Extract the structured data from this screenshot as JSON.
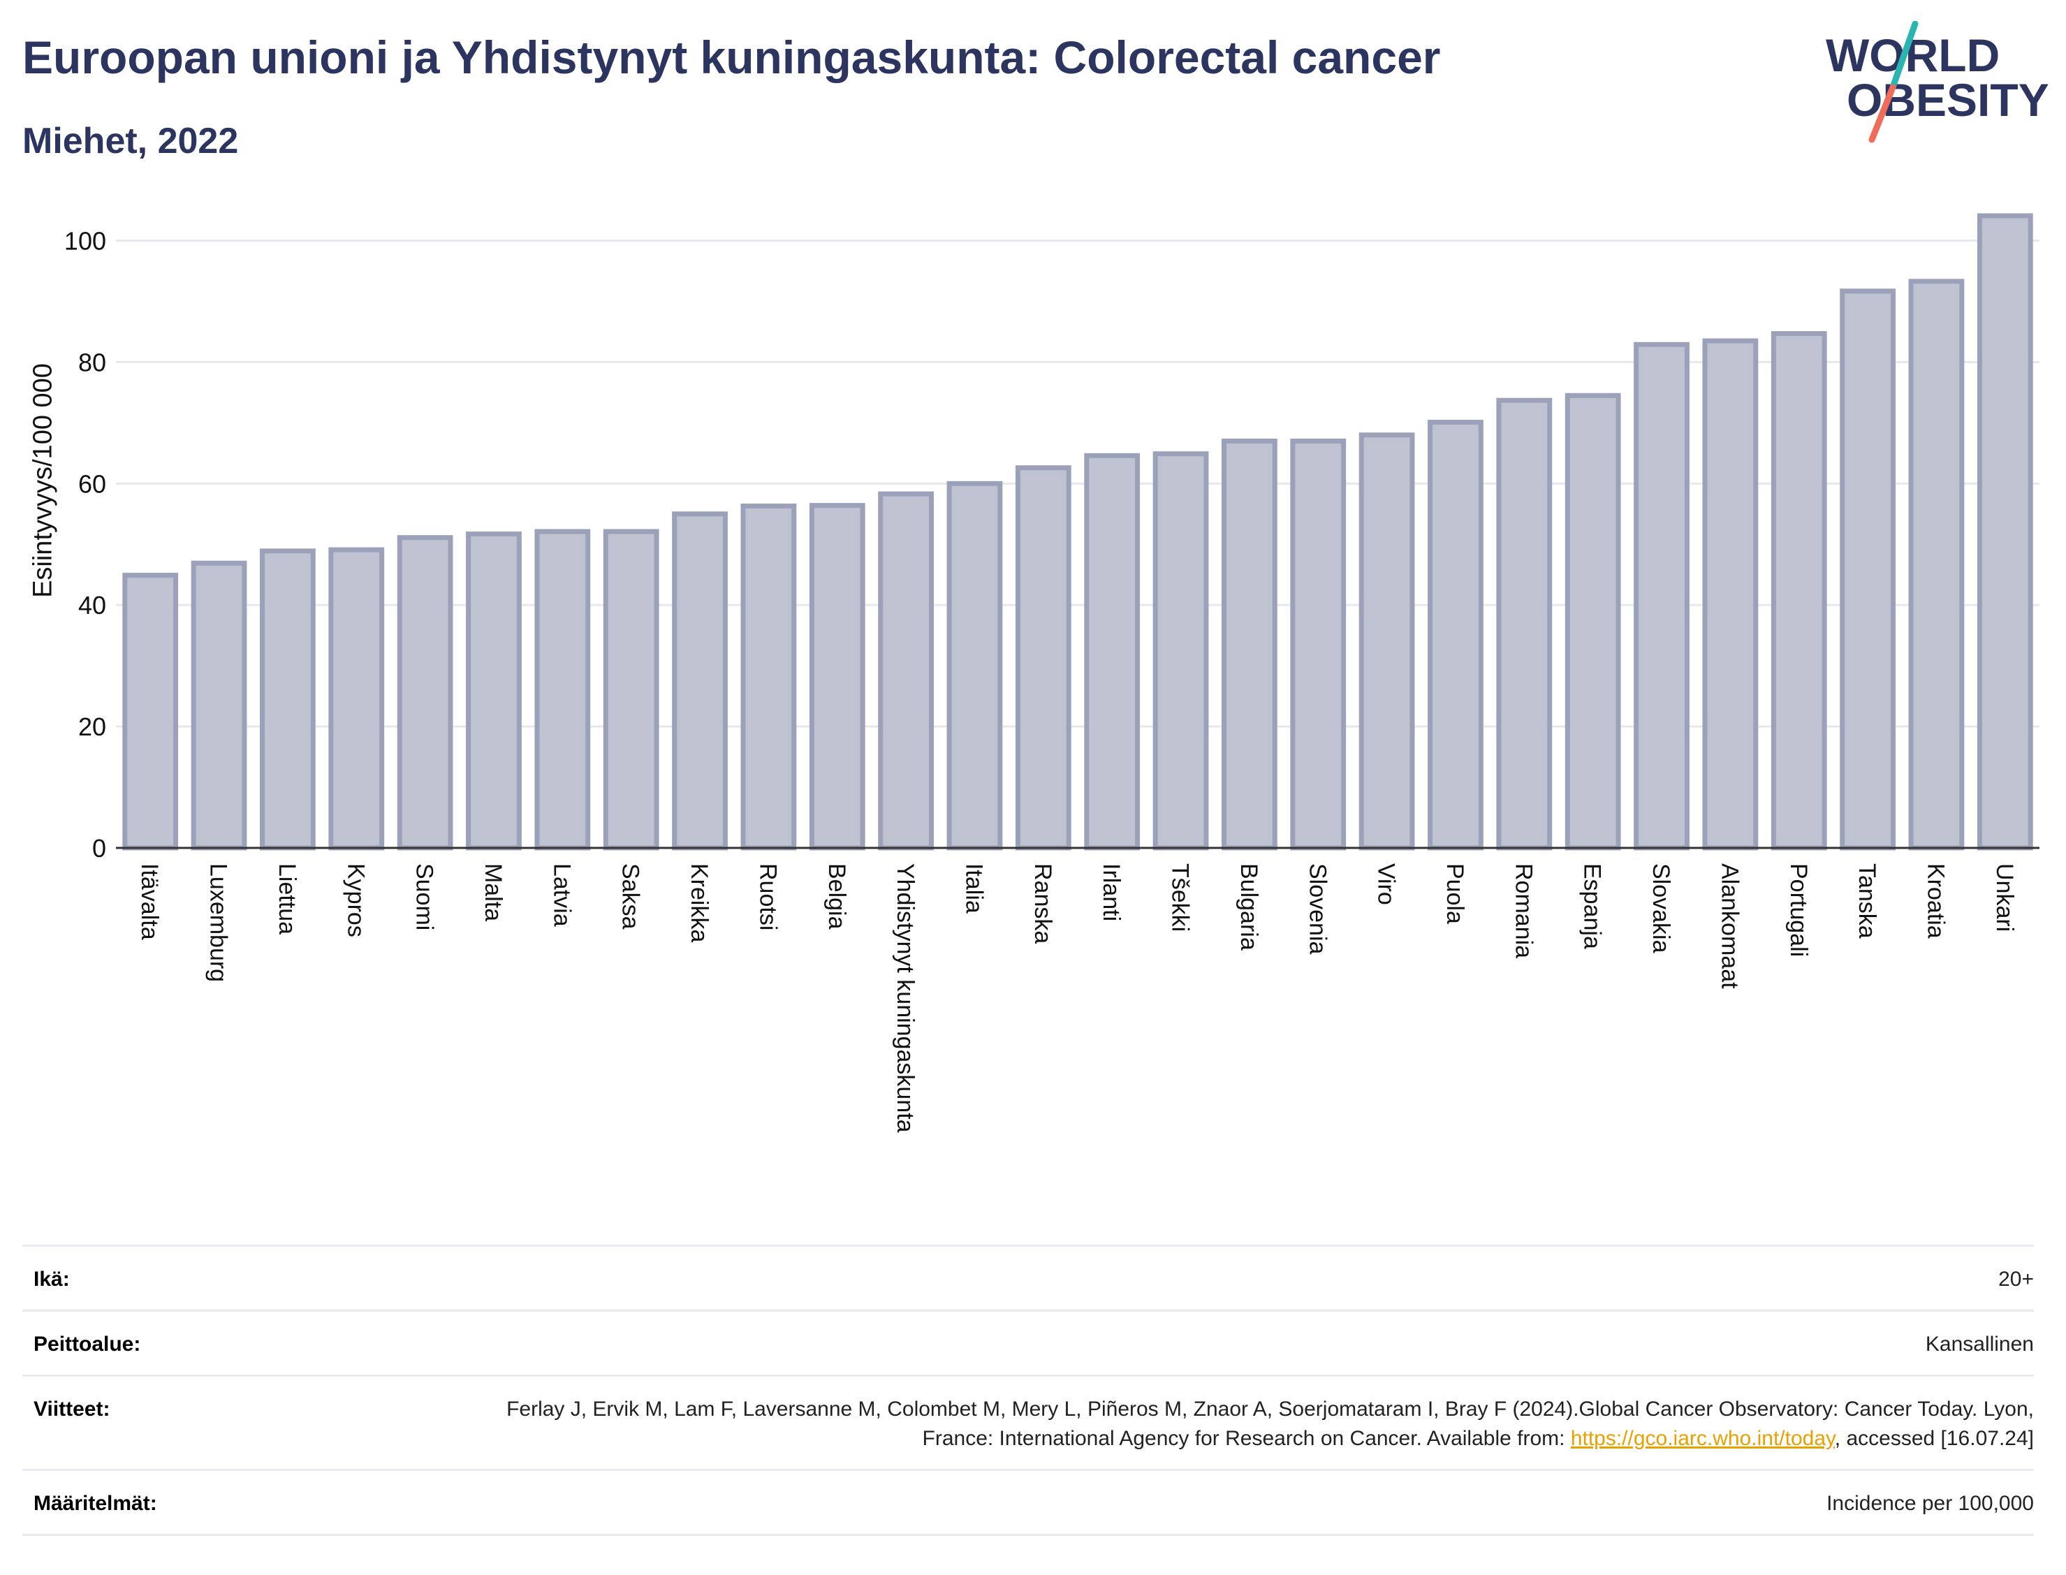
{
  "header": {
    "title": "Euroopan unioni ja Yhdistynyt kuningaskunta: Colorectal cancer",
    "subtitle": "Miehet, 2022"
  },
  "logo": {
    "line1": "WORLD",
    "line2": "OBESITY"
  },
  "chart_data": {
    "type": "bar",
    "title": "Euroopan unioni ja Yhdistynyt kuningaskunta: Colorectal cancer",
    "subtitle": "Miehet, 2022",
    "xlabel": "",
    "ylabel": "Esiintyvyys/100 000",
    "ylim": [
      0,
      108
    ],
    "yticks": [
      0,
      20,
      40,
      60,
      80,
      100
    ],
    "grid": true,
    "bar_color": "#bfc3d1",
    "bar_edge_color": "#9ba1b8",
    "categories": [
      "Itävalta",
      "Luxemburg",
      "Liettua",
      "Kypros",
      "Suomi",
      "Malta",
      "Latvia",
      "Saksa",
      "Kreikka",
      "Ruotsi",
      "Belgia",
      "Yhdistynyt kuningaskunta",
      "Italia",
      "Ranska",
      "Irlanti",
      "Tšekki",
      "Bulgaria",
      "Slovenia",
      "Viro",
      "Puola",
      "Romania",
      "Espanja",
      "Slovakia",
      "Alankomaat",
      "Portugali",
      "Tanska",
      "Kroatia",
      "Unkari"
    ],
    "values": [
      44.9,
      46.9,
      48.9,
      49.1,
      51.1,
      51.7,
      52.1,
      52.1,
      55.0,
      56.3,
      56.4,
      58.3,
      60.0,
      62.6,
      64.6,
      64.9,
      67.0,
      67.0,
      68.0,
      70.1,
      73.7,
      74.5,
      82.9,
      83.5,
      84.7,
      91.7,
      93.3,
      104.1
    ]
  },
  "info": {
    "age_label": "Ikä:",
    "age_value": "20+",
    "coverage_label": "Peittoalue:",
    "coverage_value": "Kansallinen",
    "refs_label": "Viitteet:",
    "refs_text1": "Ferlay J, Ervik M, Lam F, Laversanne M, Colombet M, Mery L, Piñeros M, Znaor A, Soerjomataram I, Bray F (2024).Global Cancer Observatory: Cancer Today. Lyon, France: International Agency for Research on Cancer. Available from: ",
    "refs_link": "https://gco.iarc.who.int/today",
    "refs_text2": ", accessed [16.07.24]",
    "defs_label": "Määritelmät:",
    "defs_value": "Incidence per 100,000"
  }
}
